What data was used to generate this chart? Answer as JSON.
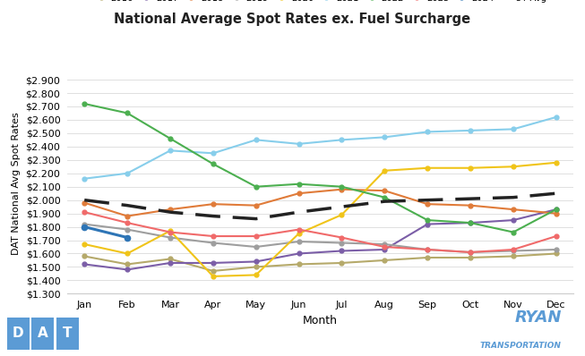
{
  "title": "National Average Spot Rates ex. Fuel Surcharge",
  "xlabel": "Month",
  "ylabel": "DAT National Avg Spot Rates",
  "months": [
    "Jan",
    "Feb",
    "Mar",
    "Apr",
    "May",
    "Jun",
    "Jul",
    "Aug",
    "Sep",
    "Oct",
    "Nov",
    "Dec"
  ],
  "series": {
    "2016": {
      "color": "#b5a96a",
      "values": [
        1.58,
        1.52,
        1.56,
        1.47,
        1.5,
        1.52,
        1.53,
        1.55,
        1.57,
        1.57,
        1.58,
        1.6
      ]
    },
    "2017": {
      "color": "#7b5ea7",
      "values": [
        1.52,
        1.48,
        1.53,
        1.53,
        1.54,
        1.6,
        1.62,
        1.63,
        1.82,
        1.83,
        1.85,
        1.93
      ]
    },
    "2018": {
      "color": "#e07b39",
      "values": [
        1.98,
        1.88,
        1.93,
        1.97,
        1.96,
        2.05,
        2.08,
        2.07,
        1.97,
        1.96,
        1.93,
        1.9
      ]
    },
    "2019": {
      "color": "#9e9e9e",
      "values": [
        1.82,
        1.78,
        1.72,
        1.68,
        1.65,
        1.69,
        1.68,
        1.67,
        1.63,
        1.61,
        1.62,
        1.63
      ]
    },
    "2020": {
      "color": "#f0c419",
      "values": [
        1.67,
        1.6,
        1.77,
        1.43,
        1.44,
        1.75,
        1.89,
        2.22,
        2.24,
        2.24,
        2.25,
        2.28
      ]
    },
    "2021": {
      "color": "#87ceeb",
      "values": [
        2.16,
        2.2,
        2.37,
        2.35,
        2.45,
        2.42,
        2.45,
        2.47,
        2.51,
        2.52,
        2.53,
        2.62
      ]
    },
    "2022": {
      "color": "#4caf50",
      "values": [
        2.72,
        2.65,
        2.46,
        2.27,
        2.1,
        2.12,
        2.1,
        2.02,
        1.85,
        1.83,
        1.76,
        1.93
      ]
    },
    "2023": {
      "color": "#f06a6a",
      "values": [
        1.91,
        1.83,
        1.76,
        1.73,
        1.73,
        1.78,
        1.72,
        1.65,
        1.63,
        1.61,
        1.63,
        1.73
      ]
    },
    "2024": {
      "color": "#2e75b6",
      "values": [
        1.8,
        1.72,
        null,
        null,
        null,
        null,
        null,
        null,
        null,
        null,
        null,
        null
      ]
    },
    "5Y Avg": {
      "color": "#222222",
      "values": [
        2.0,
        1.96,
        1.91,
        1.88,
        1.86,
        1.91,
        1.95,
        1.99,
        2.0,
        2.01,
        2.02,
        2.05
      ]
    }
  },
  "ylim": [
    1.3,
    2.95
  ],
  "yticks": [
    1.3,
    1.4,
    1.5,
    1.6,
    1.7,
    1.8,
    1.9,
    2.0,
    2.1,
    2.2,
    2.3,
    2.4,
    2.5,
    2.6,
    2.7,
    2.8,
    2.9
  ],
  "background_color": "#ffffff",
  "grid_color": "#e0e0e0",
  "dat_blue": "#5b9bd5",
  "ryan_blue": "#5b9bd5"
}
